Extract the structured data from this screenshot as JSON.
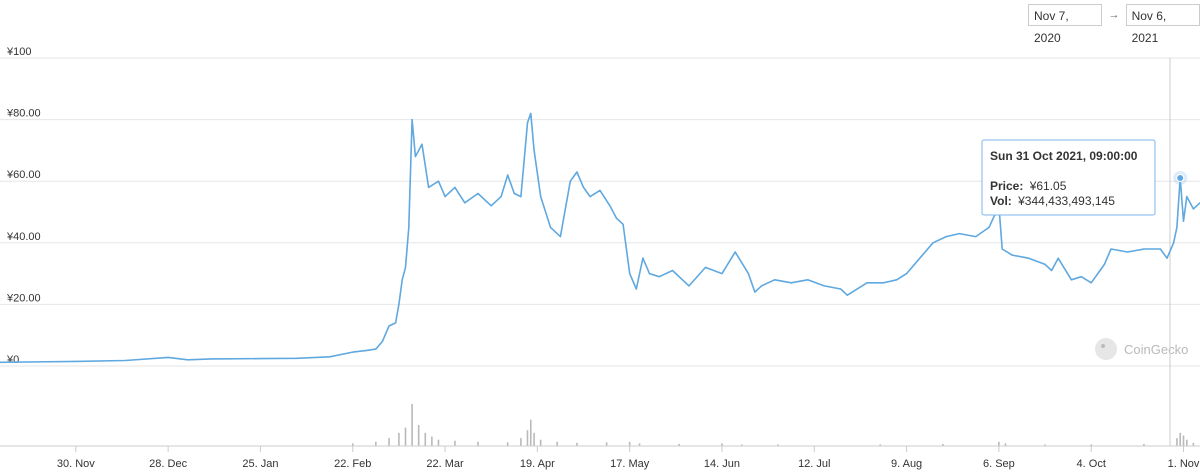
{
  "date_range": {
    "from": "Nov 7, 2020",
    "arrow": "→",
    "to": "Nov 6, 2021"
  },
  "watermark": "CoinGecko",
  "tooltip": {
    "title": "Sun 31 Oct 2021, 09:00:00",
    "price_label": "Price:",
    "price_value": "¥61.05",
    "vol_label": "Vol:",
    "vol_value": "¥344,433,493,145"
  },
  "colors": {
    "line": "#5fa8e0",
    "volume": "#b9b9b9",
    "grid": "#e6e6e6",
    "tooltip_border": "#7cb5ec"
  },
  "chart_data": {
    "type": "line",
    "xlabel": "",
    "ylabel": "",
    "ylim": [
      0,
      100
    ],
    "y_ticks": [
      "¥0",
      "¥20.00",
      "¥40.00",
      "¥60.00",
      "¥80.00",
      "¥100"
    ],
    "x_ticks": [
      "30. Nov",
      "28. Dec",
      "25. Jan",
      "22. Feb",
      "22. Mar",
      "19. Apr",
      "17. May",
      "14. Jun",
      "12. Jul",
      "9. Aug",
      "6. Sep",
      "4. Oct",
      "1. Nov"
    ],
    "series": [
      {
        "x": [
          "2020-11-07",
          "2020-11-15",
          "2020-11-30",
          "2020-12-15",
          "2020-12-28",
          "2021-01-03",
          "2021-01-10",
          "2021-01-25",
          "2021-02-05",
          "2021-02-15",
          "2021-02-22",
          "2021-02-26",
          "2021-03-01",
          "2021-03-03",
          "2021-03-05",
          "2021-03-07",
          "2021-03-08",
          "2021-03-09",
          "2021-03-10",
          "2021-03-11",
          "2021-03-12",
          "2021-03-13",
          "2021-03-15",
          "2021-03-17",
          "2021-03-20",
          "2021-03-22",
          "2021-03-25",
          "2021-03-28",
          "2021-04-01",
          "2021-04-05",
          "2021-04-08",
          "2021-04-10",
          "2021-04-12",
          "2021-04-14",
          "2021-04-16",
          "2021-04-17",
          "2021-04-18",
          "2021-04-20",
          "2021-04-23",
          "2021-04-26",
          "2021-04-29",
          "2021-05-01",
          "2021-05-03",
          "2021-05-05",
          "2021-05-08",
          "2021-05-11",
          "2021-05-13",
          "2021-05-15",
          "2021-05-17",
          "2021-05-19",
          "2021-05-21",
          "2021-05-23",
          "2021-05-26",
          "2021-05-30",
          "2021-06-04",
          "2021-06-09",
          "2021-06-14",
          "2021-06-18",
          "2021-06-22",
          "2021-06-24",
          "2021-06-26",
          "2021-06-30",
          "2021-07-05",
          "2021-07-10",
          "2021-07-15",
          "2021-07-20",
          "2021-07-22",
          "2021-07-28",
          "2021-08-02",
          "2021-08-06",
          "2021-08-09",
          "2021-08-13",
          "2021-08-17",
          "2021-08-21",
          "2021-08-25",
          "2021-08-30",
          "2021-09-03",
          "2021-09-06",
          "2021-09-07",
          "2021-09-10",
          "2021-09-15",
          "2021-09-20",
          "2021-09-22",
          "2021-09-24",
          "2021-09-28",
          "2021-10-01",
          "2021-10-04",
          "2021-10-06",
          "2021-10-08",
          "2021-10-10",
          "2021-10-15",
          "2021-10-20",
          "2021-10-25",
          "2021-10-27",
          "2021-10-29",
          "2021-10-30",
          "2021-10-31",
          "2021-11-01",
          "2021-11-02",
          "2021-11-04",
          "2021-11-06"
        ],
        "values": [
          1.2,
          1.3,
          1.5,
          1.8,
          2.8,
          2.0,
          2.3,
          2.4,
          2.5,
          3.0,
          4.5,
          5.0,
          5.5,
          8.0,
          13.0,
          14.0,
          20.0,
          28.0,
          32.0,
          45.0,
          80.0,
          68.0,
          72.0,
          58.0,
          60.0,
          55.0,
          58.0,
          53.0,
          56.0,
          52.0,
          55.0,
          62.0,
          56.0,
          55.0,
          79.0,
          82.0,
          70.0,
          55.0,
          45.0,
          42.0,
          60.0,
          63.0,
          58.0,
          55.0,
          57.0,
          52.0,
          48.0,
          46.0,
          30.0,
          25.0,
          35.0,
          30.0,
          29.0,
          31.0,
          26.0,
          32.0,
          30.0,
          37.0,
          30.0,
          24.0,
          26.0,
          28.0,
          27.0,
          28.0,
          26.0,
          25.0,
          23.0,
          27.0,
          27.0,
          28.0,
          30.0,
          35.0,
          40.0,
          42.0,
          43.0,
          42.0,
          45.0,
          52.0,
          38.0,
          36.0,
          35.0,
          33.0,
          31.0,
          35.0,
          28.0,
          29.0,
          27.0,
          30.0,
          33.0,
          38.0,
          37.0,
          38.0,
          38.0,
          35.0,
          40.0,
          45.0,
          61.05,
          47.0,
          55.0,
          51.0,
          53.0
        ]
      }
    ],
    "volume": {
      "x": [
        "2021-02-22",
        "2021-03-01",
        "2021-03-05",
        "2021-03-08",
        "2021-03-10",
        "2021-03-12",
        "2021-03-14",
        "2021-03-16",
        "2021-03-18",
        "2021-03-20",
        "2021-03-25",
        "2021-04-01",
        "2021-04-10",
        "2021-04-14",
        "2021-04-16",
        "2021-04-17",
        "2021-04-18",
        "2021-04-20",
        "2021-04-25",
        "2021-05-01",
        "2021-05-10",
        "2021-05-17",
        "2021-05-20",
        "2021-06-01",
        "2021-06-14",
        "2021-06-20",
        "2021-07-01",
        "2021-08-01",
        "2021-08-20",
        "2021-09-06",
        "2021-09-08",
        "2021-09-20",
        "2021-10-04",
        "2021-10-20",
        "2021-10-30",
        "2021-10-31",
        "2021-11-01",
        "2021-11-02",
        "2021-11-04"
      ],
      "values": [
        0.5,
        0.8,
        1.5,
        2.5,
        3.5,
        8.0,
        4.0,
        2.5,
        1.8,
        1.2,
        1.0,
        0.8,
        0.7,
        1.5,
        3.0,
        5.0,
        2.5,
        1.2,
        0.8,
        0.6,
        0.7,
        0.8,
        0.5,
        0.4,
        0.5,
        0.3,
        0.3,
        0.3,
        0.4,
        0.8,
        0.5,
        0.3,
        0.3,
        0.4,
        1.5,
        2.5,
        2.0,
        1.2,
        0.6
      ]
    }
  }
}
